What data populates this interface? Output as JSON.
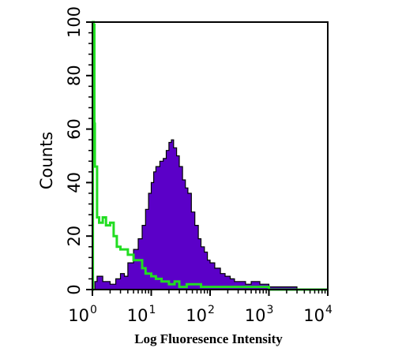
{
  "chart_data": {
    "type": "area",
    "xlabel": "Log Fluoresence Intensity",
    "ylabel": "Counts",
    "x_scale": "log",
    "xlim": [
      1,
      10000
    ],
    "ylim": [
      0,
      100
    ],
    "x_ticks": [
      {
        "base": "10",
        "exp": "0",
        "value": 1
      },
      {
        "base": "10",
        "exp": "1",
        "value": 10
      },
      {
        "base": "10",
        "exp": "2",
        "value": 100
      },
      {
        "base": "10",
        "exp": "3",
        "value": 1000
      },
      {
        "base": "10",
        "exp": "4",
        "value": 10000
      }
    ],
    "y_ticks": [
      "0",
      "20",
      "40",
      "60",
      "80",
      "100"
    ],
    "series": [
      {
        "color": "#5B00C8",
        "style": "filled",
        "x": [
          1.0,
          1.1,
          1.2,
          1.5,
          2,
          2.5,
          3,
          3.5,
          4,
          5,
          6,
          7,
          8,
          9,
          10,
          11,
          12,
          14,
          16,
          18,
          20,
          22,
          24,
          27,
          30,
          34,
          38,
          42,
          48,
          55,
          63,
          70,
          80,
          90,
          100,
          120,
          150,
          180,
          220,
          260,
          300,
          400,
          500,
          700,
          1000,
          2000,
          3000,
          10000
        ],
        "y": [
          0,
          3,
          5,
          3,
          2,
          4,
          6,
          5,
          10,
          15,
          19,
          24,
          30,
          36,
          40,
          44,
          46,
          48,
          49,
          52,
          55,
          56,
          53,
          50,
          46,
          41,
          38,
          36,
          29,
          24,
          19,
          16,
          14,
          11,
          10,
          8,
          6,
          5,
          4,
          3,
          3,
          2,
          3,
          2,
          1,
          1,
          0,
          0
        ]
      },
      {
        "color": "#22DD22",
        "style": "line",
        "x": [
          1.0,
          1.02,
          1.05,
          1.08,
          1.1,
          1.2,
          1.3,
          1.5,
          1.7,
          2,
          2.3,
          2.6,
          3,
          3.5,
          4,
          5,
          6,
          7,
          8,
          10,
          12,
          15,
          20,
          25,
          30,
          35,
          40,
          50,
          70,
          100,
          200,
          500,
          1000,
          10000
        ],
        "y": [
          0,
          100,
          99,
          62,
          46,
          27,
          25,
          27,
          24,
          25,
          20,
          16,
          15,
          15,
          13,
          11,
          11,
          8,
          6,
          5,
          4,
          3,
          2,
          3,
          1,
          1,
          2,
          2,
          1,
          1,
          1,
          1,
          0,
          0
        ]
      }
    ]
  }
}
